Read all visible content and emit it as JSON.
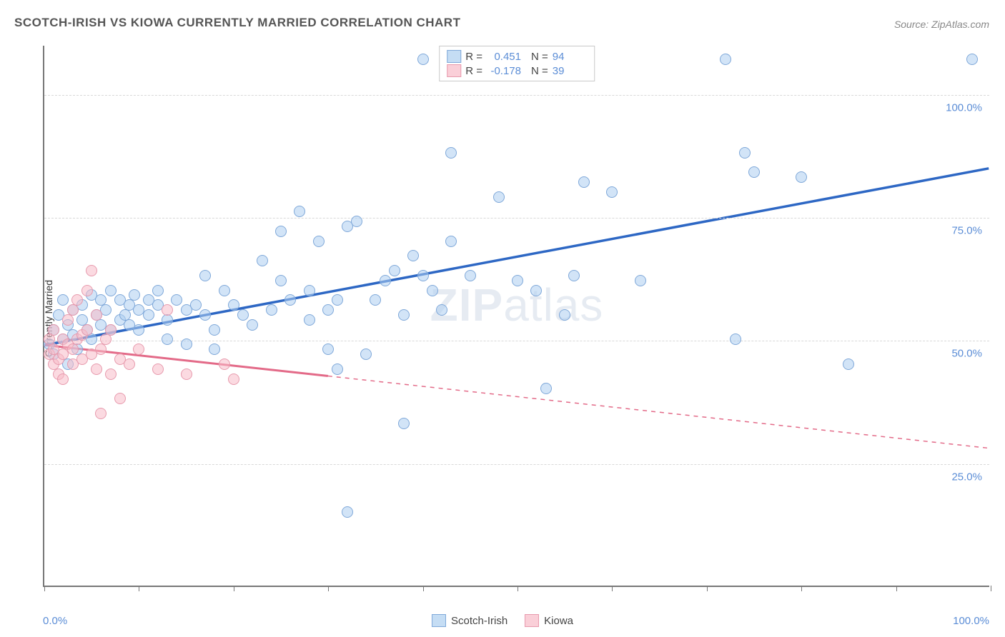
{
  "title": "SCOTCH-IRISH VS KIOWA CURRENTLY MARRIED CORRELATION CHART",
  "source": "Source: ZipAtlas.com",
  "ylabel": "Currently Married",
  "watermark_a": "ZIP",
  "watermark_b": "atlas",
  "chart": {
    "type": "scatter",
    "xlim": [
      0,
      100
    ],
    "ylim": [
      0,
      110
    ],
    "yticks": [
      25,
      50,
      75,
      100
    ],
    "ytick_labels": [
      "25.0%",
      "50.0%",
      "75.0%",
      "100.0%"
    ],
    "xtick_positions": [
      0,
      10,
      20,
      30,
      40,
      50,
      60,
      70,
      80,
      90,
      100
    ],
    "x_left_label": "0.0%",
    "x_right_label": "100.0%",
    "colors": {
      "blue_fill": "#adcdf0",
      "blue_stroke": "#7fa8d9",
      "blue_line": "#2d67c4",
      "pink_fill": "#f8bbc8",
      "pink_stroke": "#e79aad",
      "pink_line": "#e36a88",
      "grid": "#d8d8d8",
      "axis": "#777777",
      "tick_text": "#5b8dd6"
    },
    "series": [
      {
        "name": "Scotch-Irish",
        "color": "blue",
        "R": "0.451",
        "N": "94",
        "trend": {
          "x1": 0,
          "y1": 49,
          "x2": 100,
          "y2": 85,
          "dashed_from": null
        },
        "points": [
          [
            0.5,
            49
          ],
          [
            1,
            52
          ],
          [
            1,
            47
          ],
          [
            1.5,
            55
          ],
          [
            2,
            50
          ],
          [
            2,
            58
          ],
          [
            2.5,
            45
          ],
          [
            2.5,
            53
          ],
          [
            3,
            51
          ],
          [
            3,
            56
          ],
          [
            3.5,
            48
          ],
          [
            4,
            54
          ],
          [
            4,
            57
          ],
          [
            4.5,
            52
          ],
          [
            5,
            50
          ],
          [
            5,
            59
          ],
          [
            5.5,
            55
          ],
          [
            6,
            53
          ],
          [
            6,
            58
          ],
          [
            6.5,
            56
          ],
          [
            7,
            52
          ],
          [
            7,
            60
          ],
          [
            8,
            54
          ],
          [
            8,
            58
          ],
          [
            8.5,
            55
          ],
          [
            9,
            57
          ],
          [
            9,
            53
          ],
          [
            9.5,
            59
          ],
          [
            10,
            56
          ],
          [
            10,
            52
          ],
          [
            11,
            58
          ],
          [
            11,
            55
          ],
          [
            12,
            57
          ],
          [
            12,
            60
          ],
          [
            13,
            54
          ],
          [
            13,
            50
          ],
          [
            14,
            58
          ],
          [
            15,
            56
          ],
          [
            15,
            49
          ],
          [
            16,
            57
          ],
          [
            17,
            55
          ],
          [
            17,
            63
          ],
          [
            18,
            48
          ],
          [
            18,
            52
          ],
          [
            19,
            60
          ],
          [
            20,
            57
          ],
          [
            21,
            55
          ],
          [
            22,
            53
          ],
          [
            23,
            66
          ],
          [
            24,
            56
          ],
          [
            25,
            72
          ],
          [
            25,
            62
          ],
          [
            26,
            58
          ],
          [
            27,
            76
          ],
          [
            28,
            54
          ],
          [
            28,
            60
          ],
          [
            29,
            70
          ],
          [
            30,
            56
          ],
          [
            30,
            48
          ],
          [
            31,
            44
          ],
          [
            31,
            58
          ],
          [
            32,
            73
          ],
          [
            33,
            74
          ],
          [
            34,
            47
          ],
          [
            35,
            58
          ],
          [
            36,
            62
          ],
          [
            37,
            64
          ],
          [
            38,
            55
          ],
          [
            39,
            67
          ],
          [
            40,
            107
          ],
          [
            40,
            63
          ],
          [
            41,
            60
          ],
          [
            42,
            56
          ],
          [
            43,
            88
          ],
          [
            43,
            70
          ],
          [
            45,
            63
          ],
          [
            48,
            79
          ],
          [
            50,
            62
          ],
          [
            52,
            60
          ],
          [
            53,
            40
          ],
          [
            55,
            55
          ],
          [
            56,
            63
          ],
          [
            57,
            82
          ],
          [
            60,
            80
          ],
          [
            63,
            62
          ],
          [
            72,
            107
          ],
          [
            73,
            50
          ],
          [
            74,
            88
          ],
          [
            75,
            84
          ],
          [
            80,
            83
          ],
          [
            85,
            45
          ],
          [
            98,
            107
          ],
          [
            32,
            15
          ],
          [
            38,
            33
          ]
        ]
      },
      {
        "name": "Kiowa",
        "color": "pink",
        "R": "-0.178",
        "N": "39",
        "trend": {
          "x1": 0,
          "y1": 49,
          "x2": 100,
          "y2": 28,
          "dashed_from": 30
        },
        "points": [
          [
            0.5,
            47
          ],
          [
            0.5,
            50
          ],
          [
            1,
            45
          ],
          [
            1,
            48
          ],
          [
            1,
            52
          ],
          [
            1.5,
            43
          ],
          [
            1.5,
            46
          ],
          [
            2,
            47
          ],
          [
            2,
            50
          ],
          [
            2,
            42
          ],
          [
            2.5,
            49
          ],
          [
            2.5,
            54
          ],
          [
            3,
            45
          ],
          [
            3,
            48
          ],
          [
            3,
            56
          ],
          [
            3.5,
            50
          ],
          [
            3.5,
            58
          ],
          [
            4,
            46
          ],
          [
            4,
            51
          ],
          [
            4.5,
            52
          ],
          [
            4.5,
            60
          ],
          [
            5,
            47
          ],
          [
            5,
            64
          ],
          [
            5.5,
            44
          ],
          [
            5.5,
            55
          ],
          [
            6,
            48
          ],
          [
            6,
            35
          ],
          [
            6.5,
            50
          ],
          [
            7,
            43
          ],
          [
            7,
            52
          ],
          [
            8,
            46
          ],
          [
            8,
            38
          ],
          [
            9,
            45
          ],
          [
            10,
            48
          ],
          [
            12,
            44
          ],
          [
            13,
            56
          ],
          [
            15,
            43
          ],
          [
            19,
            45
          ],
          [
            20,
            42
          ]
        ]
      }
    ]
  },
  "legend_bottom": [
    {
      "label": "Scotch-Irish",
      "color": "blue"
    },
    {
      "label": "Kiowa",
      "color": "pink"
    }
  ],
  "legend_top_labels": {
    "R": "R =",
    "N": "N ="
  }
}
